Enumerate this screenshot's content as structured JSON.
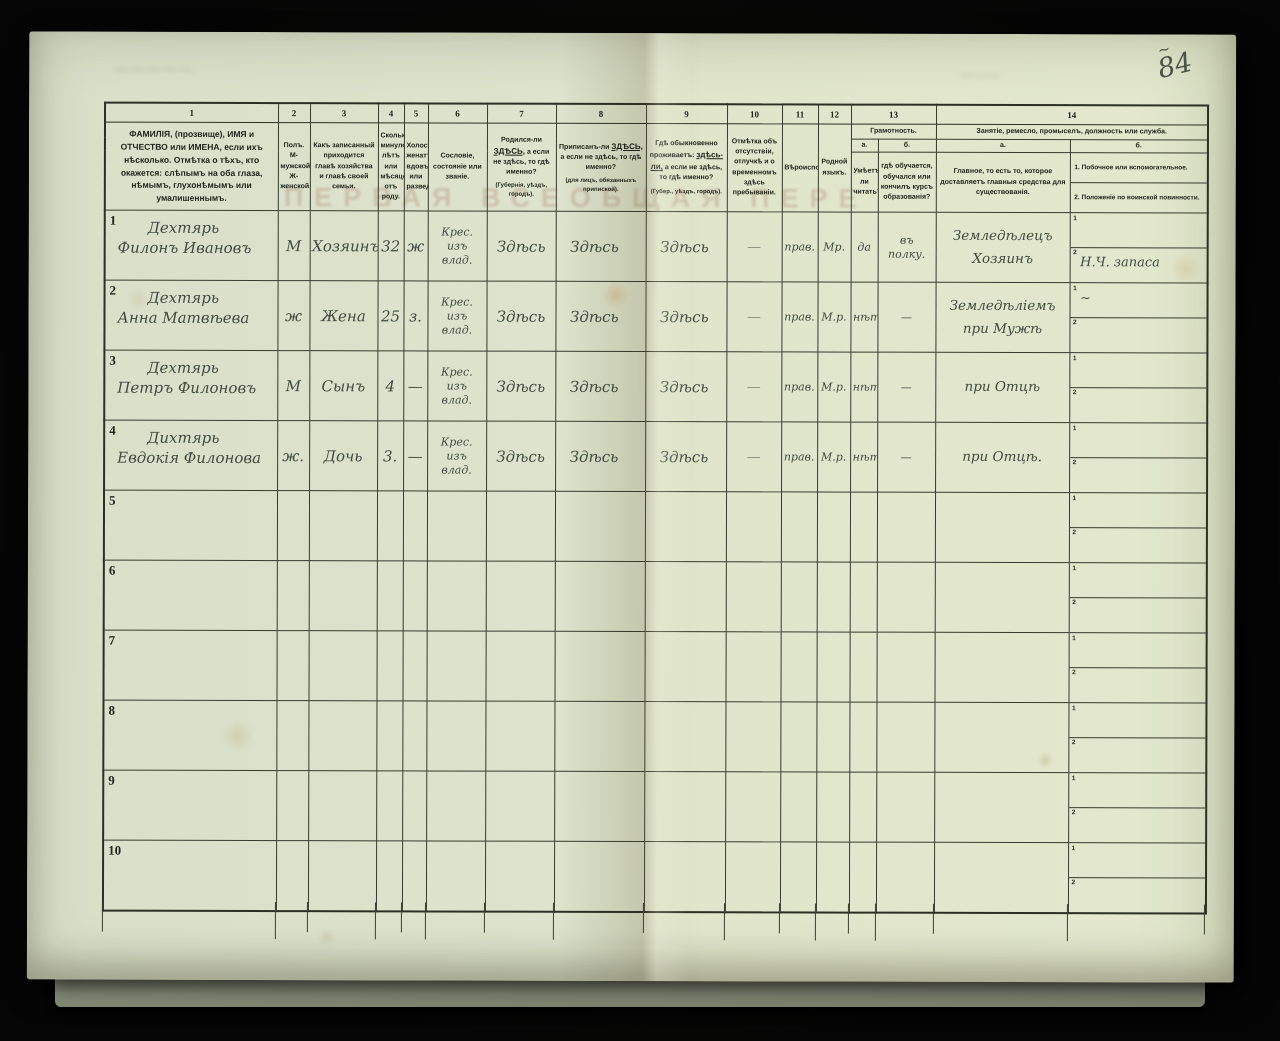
{
  "page": {
    "corner_number": "84",
    "watermark": "ПЕРВАЯ ВСЕОБЩАЯ ПЕРЕ"
  },
  "header": {
    "numbers": {
      "n1": "1",
      "n2": "2",
      "n3": "3",
      "n4": "4",
      "n5": "5",
      "n6": "6",
      "n7": "7",
      "n8": "8",
      "n9": "9",
      "n10": "10",
      "n11": "11",
      "n12": "12",
      "n13": "13",
      "n14": "14"
    },
    "c1": "ФАМИЛІЯ, (прозвище), ИМЯ и ОТЧЕСТВО или ИМЕНА, если ихъ нѣсколько. Отмѣтка о тѣхъ, кто окажется: слѣпымъ на оба глаза, нѣмымъ, глухонѣмымъ или умалишеннымъ.",
    "c2": "Полъ. М-мужской. Ж-женской.",
    "c3": "Какъ записанный приходится главѣ хозяйства и главѣ своей семьи.",
    "c4": "Сколько минуло лѣтъ или мѣсяцевъ отъ роду.",
    "c5": "Холостъ, женатъ, вдовъ или разведенъ.",
    "c6": "Сословіе, состояніе или званіе.",
    "c7": {
      "pre": "Родился-ли ",
      "u": "ЗДѢСЬ,",
      "post": " а если не здѣсь, то гдѣ именно?",
      "note": "(Губернія, уѣздъ, городъ)."
    },
    "c8": {
      "pre": "Приписанъ-ли ",
      "u": "ЗДѢСЬ,",
      "post": " а если не здѣсь, то гдѣ именно?",
      "note": "(для лицъ, обязанныхъ припиской)."
    },
    "c9": {
      "pre": "Гдѣ обыкновенно проживаетъ: ",
      "u": "здѣсь-ли,",
      "post": " а если не здѣсь, то гдѣ именно?",
      "note": "(Губер., уѣздъ, городъ)."
    },
    "c10": "Отмѣтка объ отсутствіи, отлучкѣ и о временномъ здѣсь пребываніи.",
    "c11": "Вѣроисповѣданіе.",
    "c12": "Родной языкъ.",
    "c13": {
      "title": "Грамотность.",
      "a_label": "а.",
      "b_label": "б.",
      "a": "Умѣетъ-ли читать?",
      "b": "гдѣ обучается, обучался или кончилъ курсъ образованія?"
    },
    "c14": {
      "title": "Занятіе, ремесло, промыселъ, должность или служба.",
      "a_label": "а.",
      "b_label": "б.",
      "a": "Главное, то есть то, которое доставляетъ главныя средства для существованія.",
      "b1": "1. Побочное или вспомогательное.",
      "b2": "2. Положеніе по воинской повинности."
    }
  },
  "rows": [
    {
      "num": "1",
      "sur": "Дехтярь",
      "giv": "Филонъ Ивановъ",
      "sex": "М",
      "rel": "Хозяинъ",
      "age": "32",
      "mar": "ж",
      "est1": "Крес.",
      "est2": "изъ влад.",
      "born": "Здѣсь",
      "reg": "Здѣсь",
      "res": "Здѣсь",
      "abs": "—",
      "religion": "прав.",
      "lang": "Мр.",
      "reads": "да",
      "edu": "въ полку.",
      "occ1": "Земледѣлецъ",
      "occ2": "Хозяинъ",
      "side1": "",
      "side2": "Н.Ч. запаса"
    },
    {
      "num": "2",
      "sur": "Дехтярь",
      "giv": "Анна Матвѣева",
      "sex": "ж",
      "rel": "Жена",
      "age": "25",
      "mar": "з.",
      "est1": "Крес.",
      "est2": "изъ влад.",
      "born": "Здѣсь",
      "reg": "Здѣсь",
      "res": "Здѣсь",
      "abs": "—",
      "religion": "прав.",
      "lang": "М.р.",
      "reads": "нѣтъ",
      "edu": "—",
      "occ1": "Земледѣліемъ",
      "occ2": "при Мужѣ",
      "side1": "~",
      "side2": ""
    },
    {
      "num": "3",
      "sur": "Дехтярь",
      "giv": "Петръ Филоновъ",
      "sex": "М",
      "rel": "Сынъ",
      "age": "4",
      "mar": "—",
      "est1": "Крес.",
      "est2": "изъ влад.",
      "born": "Здѣсь",
      "reg": "Здѣсь",
      "res": "Здѣсь",
      "abs": "—",
      "religion": "прав.",
      "lang": "М.р.",
      "reads": "нѣтъ",
      "edu": "—",
      "occ1": "при Отцѣ",
      "occ2": "",
      "side1": "",
      "side2": ""
    },
    {
      "num": "4",
      "sur": "Дихтярь",
      "giv": "Евдокія Филонова",
      "sex": "ж.",
      "rel": "Дочь",
      "age": "3.",
      "mar": "—",
      "est1": "Крес.",
      "est2": "изъ влад.",
      "born": "Здѣсь",
      "reg": "Здѣсь",
      "res": "Здѣсь",
      "abs": "—",
      "religion": "прав.",
      "lang": "М.р.",
      "reads": "нѣтъ",
      "edu": "—",
      "occ1": "при Отцѣ.",
      "occ2": "",
      "side1": "",
      "side2": ""
    },
    {
      "num": "5",
      "sur": "",
      "giv": "",
      "sex": "",
      "rel": "",
      "age": "",
      "mar": "",
      "est1": "",
      "est2": "",
      "born": "",
      "reg": "",
      "res": "",
      "abs": "",
      "religion": "",
      "lang": "",
      "reads": "",
      "edu": "",
      "occ1": "",
      "occ2": "",
      "side1": "",
      "side2": ""
    },
    {
      "num": "6",
      "sur": "",
      "giv": "",
      "sex": "",
      "rel": "",
      "age": "",
      "mar": "",
      "est1": "",
      "est2": "",
      "born": "",
      "reg": "",
      "res": "",
      "abs": "",
      "religion": "",
      "lang": "",
      "reads": "",
      "edu": "",
      "occ1": "",
      "occ2": "",
      "side1": "",
      "side2": ""
    },
    {
      "num": "7",
      "sur": "",
      "giv": "",
      "sex": "",
      "rel": "",
      "age": "",
      "mar": "",
      "est1": "",
      "est2": "",
      "born": "",
      "reg": "",
      "res": "",
      "abs": "",
      "religion": "",
      "lang": "",
      "reads": "",
      "edu": "",
      "occ1": "",
      "occ2": "",
      "side1": "",
      "side2": ""
    },
    {
      "num": "8",
      "sur": "",
      "giv": "",
      "sex": "",
      "rel": "",
      "age": "",
      "mar": "",
      "est1": "",
      "est2": "",
      "born": "",
      "reg": "",
      "res": "",
      "abs": "",
      "religion": "",
      "lang": "",
      "reads": "",
      "edu": "",
      "occ1": "",
      "occ2": "",
      "side1": "",
      "side2": ""
    },
    {
      "num": "9",
      "sur": "",
      "giv": "",
      "sex": "",
      "rel": "",
      "age": "",
      "mar": "",
      "est1": "",
      "est2": "",
      "born": "",
      "reg": "",
      "res": "",
      "abs": "",
      "religion": "",
      "lang": "",
      "reads": "",
      "edu": "",
      "occ1": "",
      "occ2": "",
      "side1": "",
      "side2": ""
    },
    {
      "num": "10",
      "sur": "",
      "giv": "",
      "sex": "",
      "rel": "",
      "age": "",
      "mar": "",
      "est1": "",
      "est2": "",
      "born": "",
      "reg": "",
      "res": "",
      "abs": "",
      "religion": "",
      "lang": "",
      "reads": "",
      "edu": "",
      "occ1": "",
      "occ2": "",
      "side1": "",
      "side2": ""
    }
  ],
  "sub_labels": {
    "one": "1",
    "two": "2"
  }
}
